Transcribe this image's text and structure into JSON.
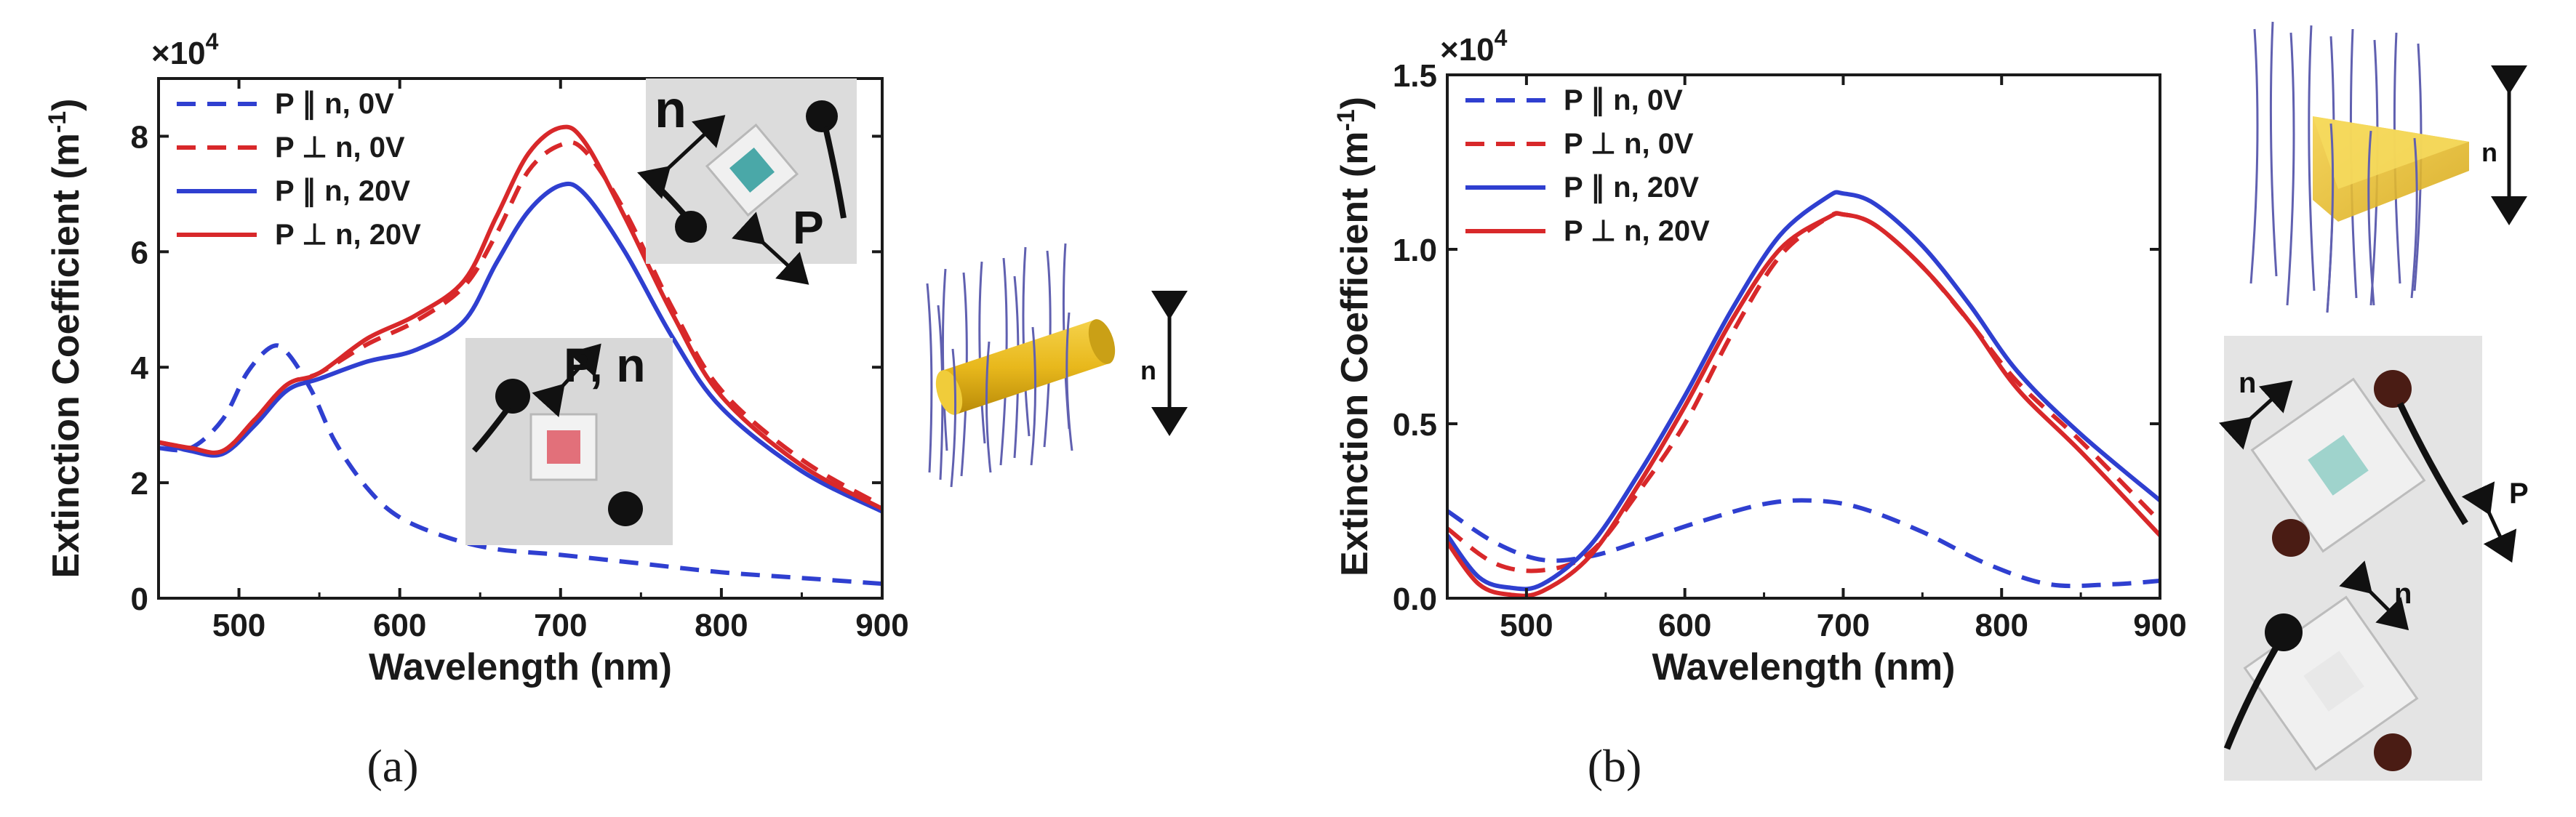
{
  "chart_data": [
    {
      "type": "line",
      "panel": "(a)",
      "multiplier": "×10",
      "multiplier_exp": "4",
      "xlabel": "Wavelength (nm)",
      "ylabel": "Extinction Coefficient (m",
      "ylabel_exp": "-1",
      "ylabel_end": ")",
      "xlim": [
        450,
        900
      ],
      "ylim": [
        0,
        9
      ],
      "xticks": [
        500,
        600,
        700,
        800,
        900
      ],
      "yticks": [
        0,
        2,
        4,
        6,
        8
      ],
      "series": [
        {
          "name": "P ∥ n, 0V",
          "color": "#2f3fd0",
          "dash": true,
          "x": [
            450,
            470,
            490,
            505,
            520,
            530,
            545,
            560,
            580,
            600,
            630,
            660,
            700,
            750,
            800,
            850,
            900
          ],
          "y": [
            2.6,
            2.6,
            3.1,
            3.9,
            4.35,
            4.25,
            3.6,
            2.7,
            1.9,
            1.4,
            1.05,
            0.85,
            0.75,
            0.6,
            0.45,
            0.35,
            0.25
          ]
        },
        {
          "name": "P ⊥ n, 0V",
          "color": "#d8282a",
          "dash": true,
          "x": [
            450,
            470,
            490,
            510,
            530,
            550,
            580,
            610,
            640,
            660,
            680,
            700,
            715,
            740,
            770,
            800,
            850,
            900
          ],
          "y": [
            2.7,
            2.6,
            2.55,
            3.1,
            3.7,
            3.9,
            4.4,
            4.8,
            5.4,
            6.3,
            7.4,
            7.85,
            7.75,
            6.7,
            5.0,
            3.6,
            2.4,
            1.6
          ]
        },
        {
          "name": "P ∥ n, 20V",
          "color": "#2f3fd0",
          "dash": false,
          "x": [
            450,
            470,
            490,
            510,
            530,
            550,
            580,
            610,
            640,
            660,
            680,
            700,
            715,
            740,
            770,
            800,
            850,
            900
          ],
          "y": [
            2.7,
            2.55,
            2.5,
            3.0,
            3.6,
            3.8,
            4.1,
            4.3,
            4.8,
            5.8,
            6.7,
            7.15,
            7.0,
            6.0,
            4.5,
            3.3,
            2.2,
            1.5
          ]
        },
        {
          "name": "P ⊥ n, 20V",
          "color": "#d8282a",
          "dash": false,
          "x": [
            450,
            470,
            490,
            510,
            530,
            550,
            580,
            610,
            640,
            660,
            680,
            700,
            715,
            740,
            770,
            800,
            850,
            900
          ],
          "y": [
            2.7,
            2.6,
            2.55,
            3.1,
            3.7,
            3.9,
            4.5,
            4.9,
            5.5,
            6.6,
            7.7,
            8.15,
            7.9,
            6.6,
            4.9,
            3.5,
            2.3,
            1.55
          ]
        }
      ]
    },
    {
      "type": "line",
      "panel": "(b)",
      "multiplier": "×10",
      "multiplier_exp": "4",
      "xlabel": "Wavelength (nm)",
      "ylabel": "Extinction Coefficient (m",
      "ylabel_exp": "-1",
      "ylabel_end": ")",
      "xlim": [
        450,
        900
      ],
      "ylim": [
        0,
        1.5
      ],
      "xticks": [
        500,
        600,
        700,
        800,
        900
      ],
      "yticks": [
        0.0,
        0.5,
        1.0,
        1.5
      ],
      "ytick_labels": [
        "0.0",
        "0.5",
        "1.0",
        "1.5"
      ],
      "series": [
        {
          "name": "P ∥ n, 0V",
          "color": "#2f3fd0",
          "dash": true,
          "x": [
            450,
            480,
            510,
            540,
            570,
            610,
            650,
            680,
            710,
            750,
            790,
            830,
            870,
            900
          ],
          "y": [
            0.25,
            0.16,
            0.11,
            0.12,
            0.16,
            0.22,
            0.27,
            0.28,
            0.26,
            0.19,
            0.1,
            0.04,
            0.04,
            0.05
          ]
        },
        {
          "name": "P ⊥ n, 0V",
          "color": "#d8282a",
          "dash": true,
          "x": [
            450,
            480,
            510,
            540,
            570,
            600,
            630,
            660,
            690,
            700,
            720,
            750,
            780,
            810,
            850,
            900
          ],
          "y": [
            0.2,
            0.1,
            0.08,
            0.13,
            0.3,
            0.5,
            0.76,
            0.98,
            1.09,
            1.1,
            1.07,
            0.95,
            0.79,
            0.62,
            0.45,
            0.22
          ]
        },
        {
          "name": "P ∥ n, 20V",
          "color": "#2f3fd0",
          "dash": false,
          "x": [
            450,
            470,
            490,
            510,
            540,
            570,
            600,
            630,
            660,
            690,
            700,
            720,
            750,
            780,
            810,
            850,
            900
          ],
          "y": [
            0.18,
            0.06,
            0.03,
            0.04,
            0.15,
            0.35,
            0.58,
            0.83,
            1.04,
            1.15,
            1.16,
            1.13,
            1.01,
            0.84,
            0.65,
            0.47,
            0.28
          ]
        },
        {
          "name": "P ⊥ n, 20V",
          "color": "#d8282a",
          "dash": false,
          "x": [
            450,
            470,
            490,
            510,
            540,
            570,
            600,
            630,
            660,
            690,
            700,
            720,
            750,
            780,
            810,
            850,
            900
          ],
          "y": [
            0.16,
            0.04,
            0.01,
            0.02,
            0.12,
            0.32,
            0.55,
            0.8,
            1.0,
            1.09,
            1.1,
            1.07,
            0.95,
            0.79,
            0.6,
            0.42,
            0.18
          ]
        }
      ]
    }
  ],
  "insets": {
    "a_top_n": "n",
    "a_top_P": "P",
    "a_bottom_Pn": "P, n",
    "a_rod_n": "n",
    "b_tri_n": "n",
    "b_photo_n1": "n",
    "b_photo_P": "P",
    "b_photo_n2": "n"
  },
  "captions": {
    "a": "(a)",
    "b": "(b)"
  }
}
